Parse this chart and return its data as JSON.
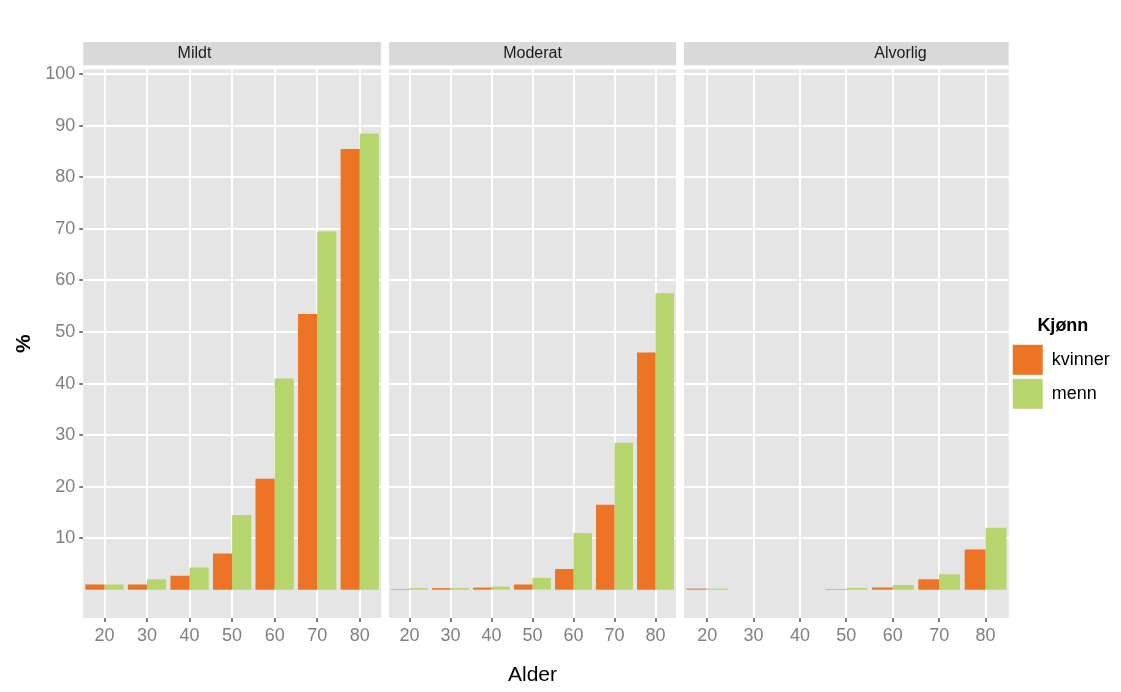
{
  "chart_data": [
    {
      "type": "bar",
      "title": "Mildt",
      "ylabel": "%",
      "categories": [
        "20",
        "30",
        "40",
        "50",
        "60",
        "70",
        "80"
      ],
      "series": [
        {
          "color": "#ec7424",
          "values": [
            1,
            1,
            2.7,
            7,
            21.5,
            53.5,
            85.5
          ]
        },
        {
          "color": "#b6d56c",
          "values": [
            1,
            2,
            4.3,
            14.5,
            41,
            69.5,
            88.5
          ]
        }
      ],
      "ylim": [
        -5.5,
        101
      ],
      "yticks": [
        10,
        20,
        30,
        40,
        50,
        60,
        70,
        80,
        90,
        100
      ],
      "grid": true,
      "legend": false
    },
    {
      "type": "bar",
      "title": "Moderat",
      "xlabel": "Alder",
      "categories": [
        "20",
        "30",
        "40",
        "50",
        "60",
        "70",
        "80"
      ],
      "series": [
        {
          "color": "#ec7424",
          "values": [
            0.1,
            0.3,
            0.4,
            1,
            4,
            16.5,
            46
          ]
        },
        {
          "color": "#b6d56c",
          "values": [
            0.3,
            0.3,
            0.6,
            2.3,
            11,
            28.5,
            57.5
          ]
        }
      ],
      "ylim": [
        -5.5,
        101
      ],
      "yticks": [
        10,
        20,
        30,
        40,
        50,
        60,
        70,
        80,
        90,
        100
      ],
      "grid": true,
      "legend": false,
      "tick_labels": "x"
    },
    {
      "type": "bar",
      "title": "Alvorlig",
      "legend_title": "Kjønn",
      "categories": [
        "20",
        "30",
        "40",
        "50",
        "60",
        "70",
        "80"
      ],
      "series": [
        {
          "name": "kvinner",
          "color": "#ec7424",
          "values": [
            0.2,
            0,
            0,
            0.1,
            0.4,
            2,
            7.8
          ]
        },
        {
          "name": "menn",
          "color": "#b6d56c",
          "values": [
            0.2,
            0,
            0,
            0.3,
            0.9,
            3,
            12
          ]
        }
      ],
      "ylim": [
        -5.5,
        101
      ],
      "yticks": [
        10,
        20,
        30,
        40,
        50,
        60,
        70,
        80,
        90,
        100
      ],
      "grid": true,
      "legend": "right",
      "tick_labels": "x"
    }
  ]
}
